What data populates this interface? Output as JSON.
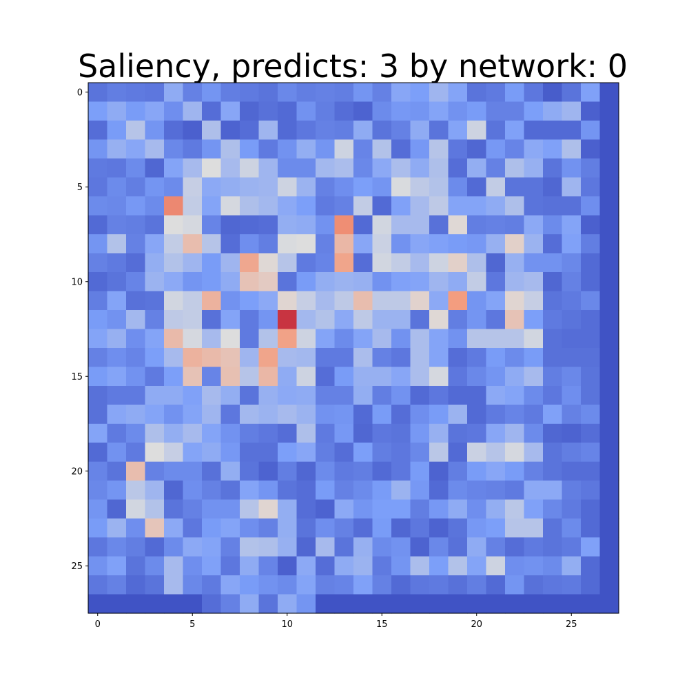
{
  "chart_data": {
    "type": "heatmap",
    "title": "Saliency, predicts: 3 by network: 0",
    "xlabel": "",
    "ylabel": "",
    "colormap": "coolwarm",
    "value_range": [
      0,
      1
    ],
    "rows": 28,
    "cols": 28,
    "x_ticks": [
      0,
      5,
      10,
      15,
      20,
      25
    ],
    "y_ticks": [
      0,
      5,
      10,
      15,
      20,
      25
    ],
    "xlim": [
      -0.5,
      27.5
    ],
    "ylim": [
      27.5,
      -0.5
    ],
    "grid": false,
    "colors": {
      "axes": "#000000",
      "background": "#ffffff"
    },
    "values": [
      [
        0.12,
        0.15,
        0.14,
        0.13,
        0.3,
        0.16,
        0.22,
        0.15,
        0.14,
        0.12,
        0.18,
        0.15,
        0.16,
        0.15,
        0.22,
        0.16,
        0.28,
        0.25,
        0.34,
        0.27,
        0.12,
        0.14,
        0.24,
        0.13,
        0.05,
        0.12,
        0.26,
        0.02
      ],
      [
        0.25,
        0.3,
        0.24,
        0.28,
        0.2,
        0.34,
        0.1,
        0.28,
        0.08,
        0.11,
        0.09,
        0.21,
        0.15,
        0.1,
        0.07,
        0.19,
        0.23,
        0.22,
        0.27,
        0.21,
        0.24,
        0.16,
        0.16,
        0.25,
        0.3,
        0.34,
        0.06,
        0.02
      ],
      [
        0.1,
        0.24,
        0.4,
        0.22,
        0.1,
        0.06,
        0.38,
        0.07,
        0.1,
        0.34,
        0.09,
        0.13,
        0.16,
        0.15,
        0.3,
        0.12,
        0.16,
        0.3,
        0.12,
        0.27,
        0.46,
        0.12,
        0.26,
        0.09,
        0.09,
        0.09,
        0.22,
        0.02
      ],
      [
        0.22,
        0.32,
        0.28,
        0.36,
        0.18,
        0.14,
        0.22,
        0.38,
        0.24,
        0.14,
        0.21,
        0.31,
        0.22,
        0.46,
        0.17,
        0.39,
        0.1,
        0.23,
        0.4,
        0.13,
        0.08,
        0.23,
        0.17,
        0.29,
        0.26,
        0.38,
        0.06,
        0.02
      ],
      [
        0.14,
        0.13,
        0.19,
        0.08,
        0.27,
        0.36,
        0.5,
        0.36,
        0.46,
        0.34,
        0.19,
        0.19,
        0.35,
        0.37,
        0.18,
        0.29,
        0.37,
        0.3,
        0.38,
        0.1,
        0.31,
        0.16,
        0.38,
        0.32,
        0.12,
        0.21,
        0.15,
        0.02
      ],
      [
        0.13,
        0.19,
        0.15,
        0.22,
        0.19,
        0.44,
        0.29,
        0.31,
        0.33,
        0.34,
        0.46,
        0.33,
        0.16,
        0.2,
        0.25,
        0.22,
        0.49,
        0.42,
        0.39,
        0.19,
        0.09,
        0.43,
        0.12,
        0.12,
        0.08,
        0.34,
        0.13,
        0.02
      ],
      [
        0.19,
        0.18,
        0.23,
        0.19,
        0.78,
        0.43,
        0.27,
        0.48,
        0.38,
        0.35,
        0.29,
        0.25,
        0.14,
        0.16,
        0.43,
        0.09,
        0.26,
        0.36,
        0.42,
        0.27,
        0.27,
        0.3,
        0.38,
        0.12,
        0.11,
        0.11,
        0.2,
        0.02
      ],
      [
        0.09,
        0.16,
        0.15,
        0.12,
        0.5,
        0.48,
        0.17,
        0.08,
        0.09,
        0.1,
        0.31,
        0.3,
        0.21,
        0.77,
        0.09,
        0.47,
        0.36,
        0.36,
        0.11,
        0.52,
        0.15,
        0.16,
        0.15,
        0.29,
        0.19,
        0.27,
        0.06,
        0.02
      ],
      [
        0.22,
        0.39,
        0.16,
        0.28,
        0.43,
        0.62,
        0.4,
        0.1,
        0.2,
        0.15,
        0.49,
        0.5,
        0.16,
        0.64,
        0.28,
        0.45,
        0.21,
        0.28,
        0.26,
        0.24,
        0.23,
        0.32,
        0.55,
        0.33,
        0.1,
        0.26,
        0.15,
        0.02
      ],
      [
        0.16,
        0.14,
        0.1,
        0.31,
        0.39,
        0.34,
        0.24,
        0.34,
        0.7,
        0.52,
        0.4,
        0.14,
        0.17,
        0.71,
        0.1,
        0.47,
        0.43,
        0.36,
        0.46,
        0.55,
        0.38,
        0.08,
        0.32,
        0.21,
        0.21,
        0.18,
        0.09,
        0.02
      ],
      [
        0.09,
        0.12,
        0.17,
        0.33,
        0.29,
        0.22,
        0.24,
        0.3,
        0.6,
        0.57,
        0.12,
        0.24,
        0.31,
        0.33,
        0.32,
        0.21,
        0.26,
        0.27,
        0.34,
        0.3,
        0.43,
        0.13,
        0.34,
        0.36,
        0.08,
        0.16,
        0.09,
        0.02
      ],
      [
        0.15,
        0.27,
        0.11,
        0.12,
        0.47,
        0.43,
        0.66,
        0.21,
        0.25,
        0.29,
        0.53,
        0.44,
        0.36,
        0.42,
        0.62,
        0.42,
        0.42,
        0.54,
        0.29,
        0.74,
        0.22,
        0.27,
        0.53,
        0.44,
        0.12,
        0.14,
        0.18,
        0.02
      ],
      [
        0.24,
        0.21,
        0.35,
        0.16,
        0.42,
        0.43,
        0.11,
        0.27,
        0.14,
        0.22,
        0.92,
        0.35,
        0.39,
        0.29,
        0.42,
        0.33,
        0.33,
        0.12,
        0.52,
        0.15,
        0.22,
        0.13,
        0.6,
        0.25,
        0.14,
        0.12,
        0.1,
        0.02
      ],
      [
        0.27,
        0.32,
        0.2,
        0.27,
        0.63,
        0.48,
        0.36,
        0.5,
        0.14,
        0.39,
        0.72,
        0.46,
        0.27,
        0.19,
        0.27,
        0.36,
        0.21,
        0.37,
        0.27,
        0.21,
        0.4,
        0.4,
        0.4,
        0.47,
        0.11,
        0.1,
        0.1,
        0.02
      ],
      [
        0.16,
        0.2,
        0.17,
        0.25,
        0.36,
        0.66,
        0.63,
        0.6,
        0.34,
        0.71,
        0.36,
        0.35,
        0.14,
        0.14,
        0.37,
        0.16,
        0.13,
        0.37,
        0.27,
        0.1,
        0.14,
        0.24,
        0.19,
        0.24,
        0.11,
        0.11,
        0.11,
        0.02
      ],
      [
        0.24,
        0.27,
        0.21,
        0.14,
        0.25,
        0.6,
        0.17,
        0.61,
        0.4,
        0.64,
        0.3,
        0.46,
        0.1,
        0.24,
        0.32,
        0.32,
        0.28,
        0.37,
        0.48,
        0.13,
        0.18,
        0.22,
        0.3,
        0.36,
        0.15,
        0.18,
        0.12,
        0.02
      ],
      [
        0.11,
        0.14,
        0.14,
        0.3,
        0.3,
        0.26,
        0.36,
        0.31,
        0.12,
        0.32,
        0.29,
        0.3,
        0.16,
        0.16,
        0.31,
        0.15,
        0.21,
        0.09,
        0.13,
        0.09,
        0.09,
        0.29,
        0.27,
        0.19,
        0.13,
        0.2,
        0.12,
        0.02
      ],
      [
        0.11,
        0.28,
        0.3,
        0.27,
        0.21,
        0.27,
        0.34,
        0.13,
        0.35,
        0.33,
        0.36,
        0.33,
        0.21,
        0.22,
        0.09,
        0.24,
        0.1,
        0.2,
        0.24,
        0.33,
        0.09,
        0.14,
        0.17,
        0.14,
        0.26,
        0.16,
        0.19,
        0.02
      ],
      [
        0.27,
        0.14,
        0.19,
        0.38,
        0.31,
        0.36,
        0.27,
        0.21,
        0.15,
        0.13,
        0.1,
        0.38,
        0.14,
        0.23,
        0.08,
        0.13,
        0.12,
        0.23,
        0.32,
        0.12,
        0.13,
        0.28,
        0.34,
        0.19,
        0.08,
        0.07,
        0.1,
        0.02
      ],
      [
        0.09,
        0.21,
        0.14,
        0.5,
        0.44,
        0.27,
        0.3,
        0.23,
        0.11,
        0.11,
        0.25,
        0.28,
        0.15,
        0.1,
        0.25,
        0.15,
        0.13,
        0.18,
        0.41,
        0.09,
        0.45,
        0.4,
        0.48,
        0.36,
        0.12,
        0.15,
        0.17,
        0.02
      ],
      [
        0.17,
        0.12,
        0.62,
        0.16,
        0.19,
        0.19,
        0.11,
        0.31,
        0.12,
        0.07,
        0.15,
        0.08,
        0.19,
        0.14,
        0.15,
        0.09,
        0.13,
        0.24,
        0.07,
        0.15,
        0.24,
        0.28,
        0.24,
        0.16,
        0.12,
        0.1,
        0.1,
        0.02
      ],
      [
        0.18,
        0.22,
        0.41,
        0.34,
        0.08,
        0.2,
        0.16,
        0.12,
        0.27,
        0.22,
        0.12,
        0.1,
        0.24,
        0.16,
        0.19,
        0.24,
        0.33,
        0.23,
        0.09,
        0.19,
        0.17,
        0.16,
        0.14,
        0.29,
        0.29,
        0.15,
        0.13,
        0.02
      ],
      [
        0.22,
        0.08,
        0.47,
        0.39,
        0.12,
        0.16,
        0.21,
        0.21,
        0.4,
        0.53,
        0.31,
        0.1,
        0.07,
        0.29,
        0.22,
        0.25,
        0.25,
        0.15,
        0.23,
        0.3,
        0.2,
        0.31,
        0.41,
        0.26,
        0.18,
        0.14,
        0.09,
        0.02
      ],
      [
        0.24,
        0.33,
        0.2,
        0.59,
        0.29,
        0.13,
        0.24,
        0.27,
        0.2,
        0.16,
        0.31,
        0.12,
        0.2,
        0.16,
        0.1,
        0.24,
        0.08,
        0.13,
        0.07,
        0.12,
        0.23,
        0.25,
        0.4,
        0.4,
        0.12,
        0.19,
        0.09,
        0.02
      ],
      [
        0.13,
        0.18,
        0.15,
        0.09,
        0.19,
        0.29,
        0.27,
        0.16,
        0.39,
        0.38,
        0.32,
        0.08,
        0.36,
        0.12,
        0.32,
        0.19,
        0.21,
        0.07,
        0.18,
        0.11,
        0.3,
        0.16,
        0.1,
        0.14,
        0.12,
        0.14,
        0.26,
        0.02
      ],
      [
        0.21,
        0.26,
        0.12,
        0.19,
        0.36,
        0.2,
        0.26,
        0.13,
        0.3,
        0.17,
        0.06,
        0.29,
        0.1,
        0.3,
        0.33,
        0.14,
        0.22,
        0.37,
        0.25,
        0.39,
        0.27,
        0.46,
        0.2,
        0.21,
        0.19,
        0.31,
        0.09,
        0.02
      ],
      [
        0.13,
        0.16,
        0.09,
        0.12,
        0.36,
        0.18,
        0.14,
        0.28,
        0.24,
        0.21,
        0.19,
        0.27,
        0.16,
        0.17,
        0.26,
        0.16,
        0.09,
        0.13,
        0.14,
        0.11,
        0.15,
        0.09,
        0.22,
        0.11,
        0.13,
        0.14,
        0.09,
        0.02
      ],
      [
        0.02,
        0.02,
        0.02,
        0.02,
        0.02,
        0.02,
        0.1,
        0.16,
        0.3,
        0.12,
        0.3,
        0.22,
        0.02,
        0.02,
        0.02,
        0.02,
        0.02,
        0.02,
        0.02,
        0.02,
        0.02,
        0.02,
        0.02,
        0.02,
        0.02,
        0.02,
        0.02,
        0.02
      ]
    ]
  }
}
